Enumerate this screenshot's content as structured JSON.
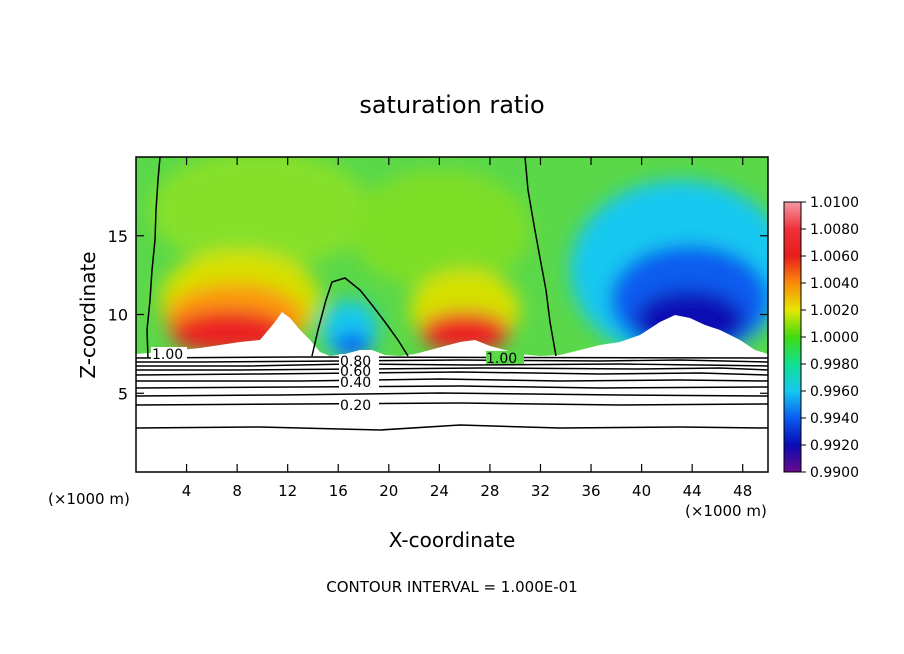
{
  "chart_data": {
    "type": "heatmap",
    "title": "saturation ratio",
    "xlabel": "X-coordinate",
    "ylabel": "Z-coordinate",
    "x_unit_left": "(×1000 m)",
    "x_unit_right": "(×1000 m)",
    "xlim": [
      0,
      50
    ],
    "ylim": [
      0,
      20
    ],
    "x_ticks": [
      "4",
      "8",
      "12",
      "16",
      "20",
      "24",
      "28",
      "32",
      "36",
      "40",
      "44",
      "48"
    ],
    "y_ticks": [
      "5",
      "10",
      "15"
    ],
    "colorbar": {
      "min": 0.99,
      "max": 1.01,
      "labels": [
        "1.0100",
        "1.0080",
        "1.0060",
        "1.0040",
        "1.0020",
        "1.0000",
        "0.9980",
        "0.9960",
        "0.9940",
        "0.9920",
        "0.9900"
      ]
    },
    "contour_labels": [
      "1.00",
      "0.80",
      "0.60",
      "0.40",
      "0.20",
      "1.00"
    ],
    "footer": "CONTOUR INTERVAL = 1.000E-01",
    "grid": false
  }
}
